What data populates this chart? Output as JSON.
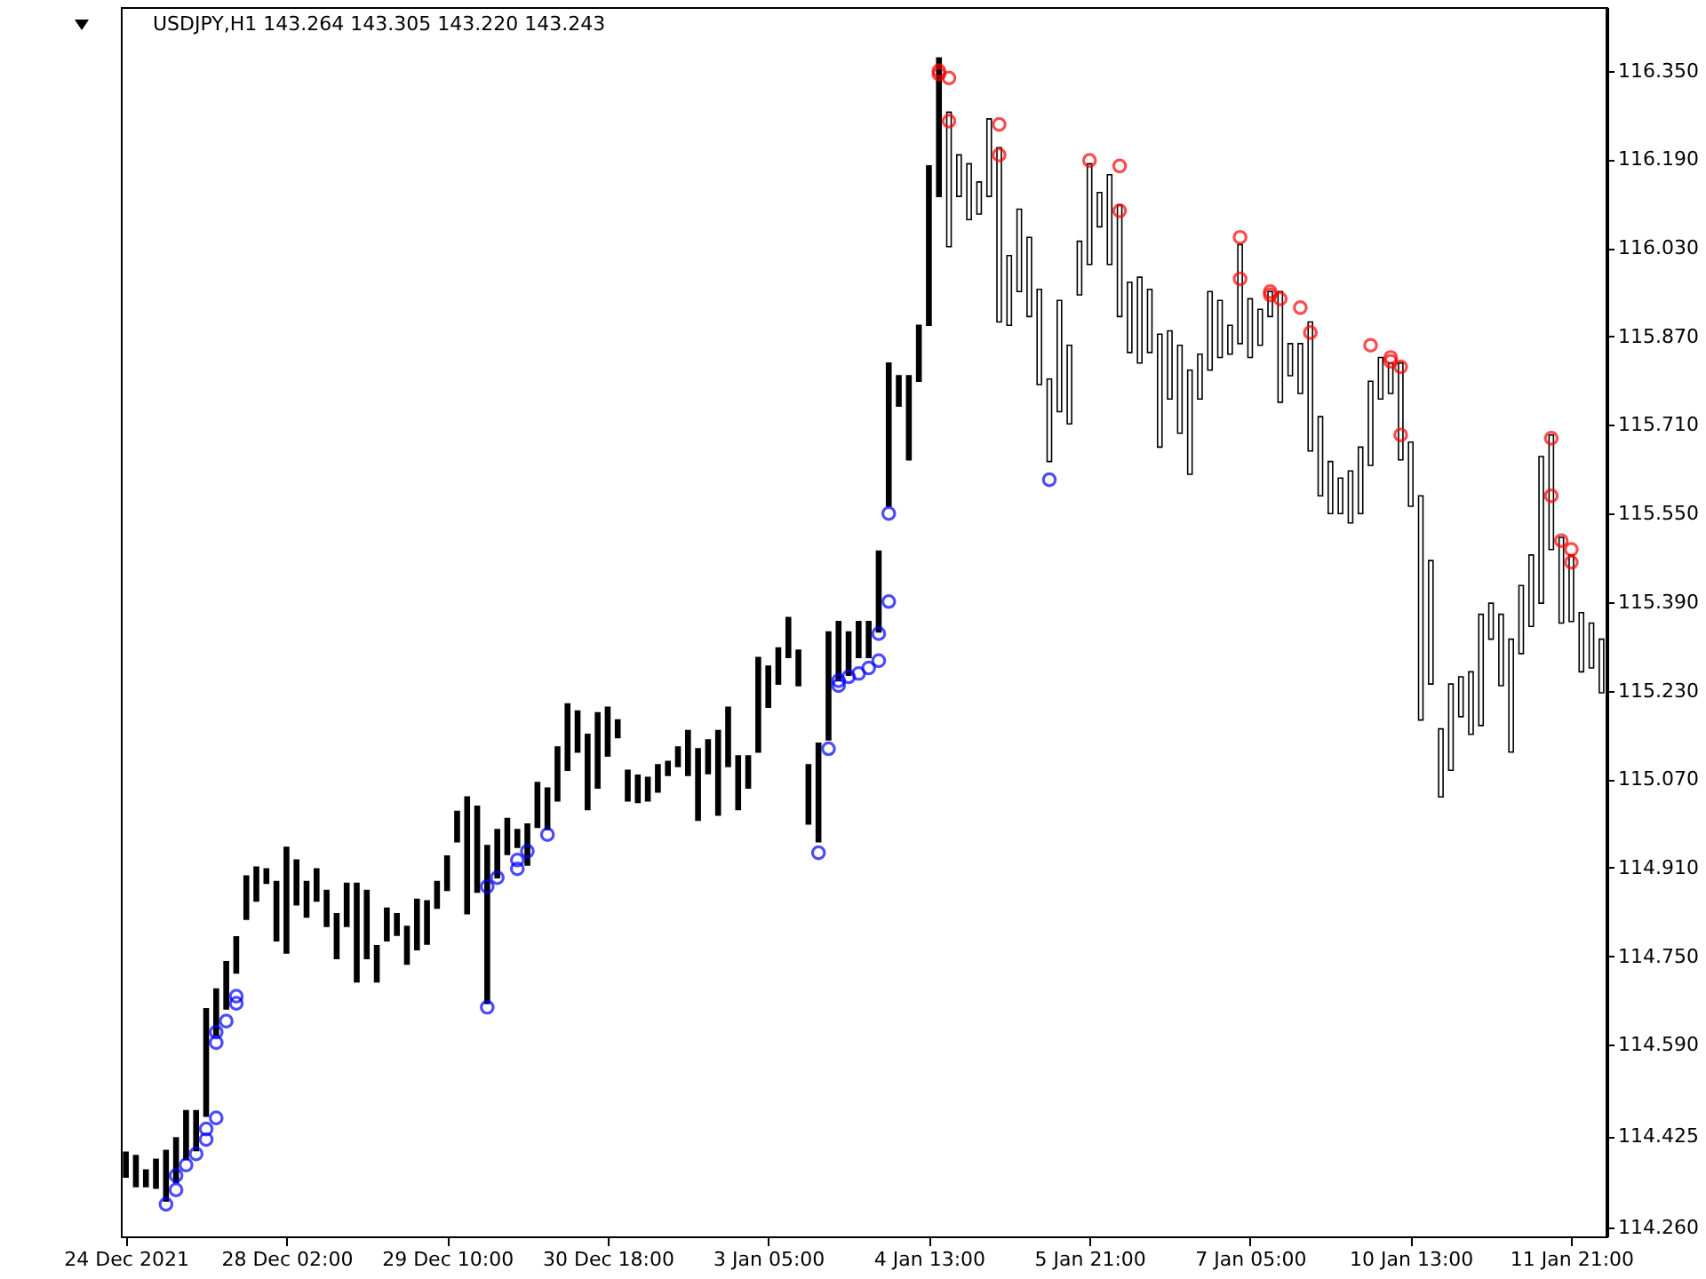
{
  "chart_data": {
    "type": "candlestick",
    "title": "USDJPY,H1  143.264 143.305 143.220 143.243",
    "categories": [
      "24 Dec 2021",
      null,
      null,
      null,
      null,
      null,
      null,
      null,
      null,
      null,
      null,
      null,
      null,
      null,
      null,
      null,
      "28 Dec 02:00",
      null,
      null,
      null,
      null,
      null,
      null,
      null,
      null,
      null,
      null,
      null,
      null,
      null,
      null,
      null,
      "29 Dec 10:00",
      null,
      null,
      null,
      null,
      null,
      null,
      null,
      null,
      null,
      null,
      null,
      null,
      null,
      null,
      null,
      "30 Dec 18:00",
      null,
      null,
      null,
      null,
      null,
      null,
      null,
      null,
      null,
      null,
      null,
      null,
      null,
      null,
      null,
      "3 Jan 05:00",
      null,
      null,
      null,
      null,
      null,
      null,
      null,
      null,
      null,
      null,
      null,
      null,
      null,
      null,
      null,
      "4 Jan 13:00",
      null,
      null,
      null,
      null,
      null,
      null,
      null,
      null,
      null,
      null,
      null,
      null,
      null,
      null,
      null,
      "5 Jan 21:00",
      null,
      null,
      null,
      null,
      null,
      null,
      null,
      null,
      null,
      null,
      null,
      null,
      null,
      null,
      null,
      "7 Jan 05:00",
      null,
      null,
      null,
      null,
      null,
      null,
      null,
      null,
      null,
      null,
      null,
      null,
      null,
      null,
      null,
      "10 Jan 13:00",
      null,
      null,
      null,
      null,
      null,
      null,
      null,
      null,
      null,
      null,
      null,
      null,
      null,
      null,
      null,
      "11 Jan 21:00",
      null,
      null,
      null
    ],
    "ohlc": [
      [
        114.351,
        114.396,
        114.351,
        114.396
      ],
      [
        114.334,
        114.39,
        114.334,
        114.39
      ],
      [
        114.334,
        114.364,
        114.334,
        114.364
      ],
      [
        114.331,
        114.383,
        114.331,
        114.383
      ],
      [
        114.308,
        114.399,
        114.308,
        114.399
      ],
      [
        114.341,
        114.422,
        114.341,
        114.422
      ],
      [
        114.383,
        114.471,
        114.383,
        114.471
      ],
      [
        114.399,
        114.471,
        114.399,
        114.471
      ],
      [
        114.461,
        114.655,
        114.461,
        114.655
      ],
      [
        114.607,
        114.691,
        114.607,
        114.691
      ],
      [
        114.655,
        114.74,
        114.655,
        114.74
      ],
      [
        114.72,
        114.785,
        114.72,
        114.785
      ],
      [
        114.817,
        114.895,
        114.817,
        114.895
      ],
      [
        114.85,
        114.911,
        114.85,
        114.911
      ],
      [
        114.882,
        114.908,
        114.882,
        114.908
      ],
      [
        114.778,
        114.885,
        114.778,
        114.885
      ],
      [
        114.756,
        114.947,
        114.756,
        114.947
      ],
      [
        114.843,
        114.924,
        114.843,
        114.924
      ],
      [
        114.821,
        114.885,
        114.821,
        114.885
      ],
      [
        114.85,
        114.908,
        114.85,
        114.908
      ],
      [
        114.804,
        114.869,
        114.804,
        114.869
      ],
      [
        114.746,
        114.827,
        114.746,
        114.827
      ],
      [
        114.804,
        114.882,
        114.804,
        114.882
      ],
      [
        114.704,
        114.882,
        114.704,
        114.882
      ],
      [
        114.746,
        114.869,
        114.746,
        114.869
      ],
      [
        114.704,
        114.769,
        114.704,
        114.769
      ],
      [
        114.778,
        114.837,
        114.778,
        114.837
      ],
      [
        114.788,
        114.827,
        114.788,
        114.827
      ],
      [
        114.736,
        114.804,
        114.736,
        114.804
      ],
      [
        114.762,
        114.853,
        114.762,
        114.853
      ],
      [
        114.772,
        114.85,
        114.772,
        114.85
      ],
      [
        114.837,
        114.885,
        114.837,
        114.885
      ],
      [
        114.869,
        114.931,
        114.869,
        114.931
      ],
      [
        114.957,
        115.012,
        114.957,
        115.012
      ],
      [
        114.827,
        115.038,
        114.827,
        115.038
      ],
      [
        114.866,
        115.021,
        114.866,
        115.021
      ],
      [
        114.665,
        114.95,
        114.665,
        114.95
      ],
      [
        114.892,
        114.979,
        114.892,
        114.979
      ],
      [
        114.934,
        114.999,
        114.934,
        114.999
      ],
      [
        114.947,
        114.979,
        114.947,
        114.979
      ],
      [
        114.915,
        114.989,
        114.915,
        114.989
      ],
      [
        114.983,
        115.064,
        114.983,
        115.064
      ],
      [
        114.979,
        115.054,
        114.979,
        115.054
      ],
      [
        115.031,
        115.128,
        115.031,
        115.128
      ],
      [
        115.086,
        115.206,
        115.086,
        115.206
      ],
      [
        115.119,
        115.193,
        115.119,
        115.193
      ],
      [
        115.015,
        115.151,
        115.015,
        115.151
      ],
      [
        115.054,
        115.19,
        115.054,
        115.19
      ],
      [
        115.112,
        115.2,
        115.112,
        115.2
      ],
      [
        115.145,
        115.177,
        115.145,
        115.177
      ],
      [
        115.031,
        115.086,
        115.031,
        115.086
      ],
      [
        115.028,
        115.077,
        115.028,
        115.077
      ],
      [
        115.031,
        115.073,
        115.031,
        115.073
      ],
      [
        115.047,
        115.096,
        115.047,
        115.096
      ],
      [
        115.077,
        115.102,
        115.077,
        115.102
      ],
      [
        115.093,
        115.128,
        115.093,
        115.128
      ],
      [
        115.077,
        115.158,
        115.077,
        115.158
      ],
      [
        114.996,
        115.125,
        114.996,
        115.125
      ],
      [
        115.08,
        115.141,
        115.08,
        115.141
      ],
      [
        115.005,
        115.158,
        115.005,
        115.158
      ],
      [
        115.093,
        115.2,
        115.093,
        115.2
      ],
      [
        115.015,
        115.112,
        115.015,
        115.112
      ],
      [
        115.054,
        115.112,
        115.054,
        115.112
      ],
      [
        115.119,
        115.29,
        115.119,
        115.29
      ],
      [
        115.2,
        115.274,
        115.2,
        115.274
      ],
      [
        115.242,
        115.307,
        115.242,
        115.307
      ],
      [
        115.29,
        115.362,
        115.29,
        115.362
      ],
      [
        115.239,
        115.303,
        115.239,
        115.303
      ],
      [
        114.989,
        115.096,
        114.989,
        115.096
      ],
      [
        114.957,
        115.135,
        114.957,
        115.135
      ],
      [
        115.141,
        115.336,
        115.141,
        115.336
      ],
      [
        115.248,
        115.355,
        115.248,
        115.355
      ],
      [
        115.258,
        115.336,
        115.258,
        115.336
      ],
      [
        115.29,
        115.355,
        115.29,
        115.355
      ],
      [
        115.29,
        115.355,
        115.29,
        115.355
      ],
      [
        115.336,
        115.482,
        115.336,
        115.482
      ],
      [
        115.563,
        115.822,
        115.563,
        115.822
      ],
      [
        115.744,
        115.799,
        115.744,
        115.799
      ],
      [
        115.647,
        115.799,
        115.647,
        115.799
      ],
      [
        115.789,
        115.89,
        115.789,
        115.89
      ],
      [
        115.89,
        116.178,
        115.89,
        116.178
      ],
      [
        116.123,
        116.373,
        116.123,
        116.373
      ],
      [
        116.275,
        116.275,
        116.032,
        116.032
      ],
      [
        116.198,
        116.198,
        116.123,
        116.123
      ],
      [
        116.182,
        116.182,
        116.081,
        116.081
      ],
      [
        116.149,
        116.149,
        116.091,
        116.091
      ],
      [
        116.263,
        116.263,
        116.123,
        116.123
      ],
      [
        116.211,
        116.211,
        115.896,
        115.896
      ],
      [
        116.016,
        116.016,
        115.89,
        115.89
      ],
      [
        116.1,
        116.1,
        115.951,
        115.951
      ],
      [
        116.049,
        116.049,
        115.906,
        115.906
      ],
      [
        115.955,
        115.955,
        115.783,
        115.783
      ],
      [
        115.793,
        115.793,
        115.644,
        115.644
      ],
      [
        115.935,
        115.935,
        115.734,
        115.734
      ],
      [
        115.854,
        115.854,
        115.712,
        115.712
      ],
      [
        116.042,
        116.042,
        115.945,
        115.945
      ],
      [
        116.182,
        116.182,
        116.0,
        116.0
      ],
      [
        116.13,
        116.13,
        116.068,
        116.068
      ],
      [
        116.162,
        116.162,
        116.0,
        116.0
      ],
      [
        116.107,
        116.107,
        115.906,
        115.906
      ],
      [
        115.968,
        115.968,
        115.841,
        115.841
      ],
      [
        115.977,
        115.977,
        115.822,
        115.822
      ],
      [
        115.955,
        115.955,
        115.841,
        115.841
      ],
      [
        115.874,
        115.874,
        115.67,
        115.67
      ],
      [
        115.88,
        115.88,
        115.757,
        115.757
      ],
      [
        115.854,
        115.854,
        115.695,
        115.695
      ],
      [
        115.809,
        115.809,
        115.621,
        115.621
      ],
      [
        115.838,
        115.838,
        115.757,
        115.757
      ],
      [
        115.951,
        115.951,
        115.809,
        115.809
      ],
      [
        115.935,
        115.935,
        115.832,
        115.832
      ],
      [
        115.89,
        115.89,
        115.838,
        115.838
      ],
      [
        116.036,
        116.036,
        115.857,
        115.857
      ],
      [
        115.938,
        115.938,
        115.832,
        115.832
      ],
      [
        115.919,
        115.919,
        115.854,
        115.854
      ],
      [
        115.951,
        115.951,
        115.906,
        115.906
      ],
      [
        115.951,
        115.951,
        115.751,
        115.751
      ],
      [
        115.857,
        115.857,
        115.799,
        115.799
      ],
      [
        115.857,
        115.857,
        115.767,
        115.767
      ],
      [
        115.896,
        115.896,
        115.663,
        115.663
      ],
      [
        115.725,
        115.725,
        115.582,
        115.582
      ],
      [
        115.644,
        115.644,
        115.55,
        115.55
      ],
      [
        115.614,
        115.614,
        115.55,
        115.55
      ],
      [
        115.627,
        115.627,
        115.533,
        115.533
      ],
      [
        115.67,
        115.67,
        115.55,
        115.55
      ],
      [
        115.789,
        115.789,
        115.637,
        115.637
      ],
      [
        115.832,
        115.832,
        115.757,
        115.757
      ],
      [
        115.822,
        115.822,
        115.767,
        115.767
      ],
      [
        115.822,
        115.822,
        115.647,
        115.647
      ],
      [
        115.679,
        115.679,
        115.563,
        115.563
      ],
      [
        115.582,
        115.582,
        115.177,
        115.177
      ],
      [
        115.465,
        115.465,
        115.242,
        115.242
      ],
      [
        115.161,
        115.161,
        115.038,
        115.038
      ],
      [
        115.242,
        115.242,
        115.086,
        115.086
      ],
      [
        115.255,
        115.255,
        115.183,
        115.183
      ],
      [
        115.264,
        115.264,
        115.151,
        115.151
      ],
      [
        115.368,
        115.368,
        115.167,
        115.167
      ],
      [
        115.388,
        115.388,
        115.323,
        115.323
      ],
      [
        115.368,
        115.368,
        115.239,
        115.239
      ],
      [
        115.323,
        115.323,
        115.119,
        115.119
      ],
      [
        115.42,
        115.42,
        115.297,
        115.297
      ],
      [
        115.475,
        115.475,
        115.346,
        115.346
      ],
      [
        115.653,
        115.653,
        115.388,
        115.388
      ],
      [
        115.692,
        115.692,
        115.485,
        115.485
      ],
      [
        115.507,
        115.507,
        115.352,
        115.352
      ],
      [
        115.475,
        115.475,
        115.355,
        115.355
      ],
      [
        115.371,
        115.371,
        115.264,
        115.264
      ],
      [
        115.352,
        115.352,
        115.271,
        115.271
      ],
      [
        115.323,
        115.323,
        115.226,
        115.226
      ]
    ],
    "series": [
      {
        "type": "scatter",
        "color": "#0000ff",
        "values": [
          null,
          null,
          null,
          null,
          114.302,
          114.354,
          null,
          null,
          114.438,
          114.613,
          null,
          114.678,
          null,
          null,
          null,
          null,
          null,
          null,
          null,
          null,
          null,
          null,
          null,
          null,
          null,
          null,
          null,
          null,
          null,
          null,
          null,
          null,
          null,
          null,
          null,
          null,
          114.876,
          114.892,
          null,
          114.924,
          114.94,
          null,
          null,
          null,
          null,
          null,
          null,
          null,
          null,
          null,
          null,
          null,
          null,
          null,
          null,
          null,
          null,
          null,
          null,
          null,
          null,
          null,
          null,
          null,
          null,
          null,
          null,
          null,
          null,
          114.937,
          null,
          115.248,
          115.255,
          null,
          null,
          115.333,
          115.55,
          null,
          null,
          null,
          null,
          null,
          null,
          null,
          null,
          null,
          null,
          null,
          null,
          null,
          null,
          null,
          115.611,
          null,
          null,
          null,
          null,
          null,
          null,
          null,
          null,
          null,
          null,
          null,
          null,
          null,
          null,
          null,
          null,
          null,
          null,
          null,
          null,
          null,
          null,
          null,
          null,
          null,
          null,
          null,
          null,
          null,
          null,
          null,
          null,
          null,
          null,
          null,
          null,
          null,
          null,
          null,
          null,
          null,
          null,
          null,
          null,
          null,
          null,
          null,
          null,
          null,
          null,
          null,
          null,
          null,
          null,
          null
        ]
      },
      {
        "type": "scatter",
        "color": "#0000ff",
        "values": [
          null,
          null,
          null,
          null,
          null,
          114.328,
          114.373,
          114.393,
          114.419,
          114.458,
          114.633,
          114.665,
          null,
          null,
          null,
          null,
          null,
          null,
          null,
          null,
          null,
          null,
          null,
          null,
          null,
          null,
          null,
          null,
          null,
          null,
          null,
          null,
          null,
          null,
          null,
          null,
          114.658,
          null,
          null,
          114.908,
          null,
          null,
          114.97,
          null,
          null,
          null,
          null,
          null,
          null,
          null,
          null,
          null,
          null,
          null,
          null,
          null,
          null,
          null,
          null,
          null,
          null,
          null,
          null,
          null,
          null,
          null,
          null,
          null,
          null,
          null,
          115.125,
          115.239,
          null,
          115.261,
          115.271,
          115.284,
          115.391,
          null,
          null,
          null,
          null,
          null,
          null,
          null,
          null,
          null,
          null,
          null,
          null,
          null,
          null,
          null,
          null,
          null,
          null,
          null,
          null,
          null,
          null,
          null,
          null,
          null,
          null,
          null,
          null,
          null,
          null,
          null,
          null,
          null,
          null,
          null,
          null,
          null,
          null,
          null,
          null,
          null,
          null,
          null,
          null,
          null,
          null,
          null,
          null,
          null,
          null,
          null,
          null,
          null,
          null,
          null,
          null,
          null,
          null,
          null,
          null,
          null,
          null,
          null,
          null,
          null,
          null,
          null,
          null,
          null,
          null,
          null
        ]
      },
      {
        "type": "scatter",
        "color": "#0000ff",
        "values": [
          null,
          null,
          null,
          null,
          null,
          null,
          null,
          null,
          null,
          114.594,
          null,
          null,
          null,
          null,
          null,
          null,
          null,
          null,
          null,
          null,
          null,
          null,
          null,
          null,
          null,
          null,
          null,
          null,
          null,
          null,
          null,
          null,
          null,
          null,
          null,
          null,
          null,
          null,
          null,
          null,
          null,
          null,
          null,
          null,
          null,
          null,
          null,
          null,
          null,
          null,
          null,
          null,
          null,
          null,
          null,
          null,
          null,
          null,
          null,
          null,
          null,
          null,
          null,
          null,
          null,
          null,
          null,
          null,
          null,
          null,
          null,
          null,
          null,
          null,
          null,
          null,
          null,
          null,
          null,
          null,
          null,
          null,
          null,
          null,
          null,
          null,
          null,
          null,
          null,
          null,
          null,
          null,
          null,
          null,
          null,
          null,
          null,
          null,
          null,
          null,
          null,
          null,
          null,
          null,
          null,
          null,
          null,
          null,
          null,
          null,
          null,
          null,
          null,
          null,
          null,
          null,
          null,
          null,
          null,
          null,
          null,
          null,
          null,
          null,
          null,
          null,
          null,
          null,
          null,
          null,
          null,
          null,
          null,
          null,
          null,
          null,
          null,
          null,
          null,
          null,
          null,
          null,
          null,
          null,
          null,
          null,
          null,
          null
        ]
      },
      {
        "type": "scatter",
        "color": "#ff0000",
        "values": [
          null,
          null,
          null,
          null,
          null,
          null,
          null,
          null,
          null,
          null,
          null,
          null,
          null,
          null,
          null,
          null,
          null,
          null,
          null,
          null,
          null,
          null,
          null,
          null,
          null,
          null,
          null,
          null,
          null,
          null,
          null,
          null,
          null,
          null,
          null,
          null,
          null,
          null,
          null,
          null,
          null,
          null,
          null,
          null,
          null,
          null,
          null,
          null,
          null,
          null,
          null,
          null,
          null,
          null,
          null,
          null,
          null,
          null,
          null,
          null,
          null,
          null,
          null,
          null,
          null,
          null,
          null,
          null,
          null,
          null,
          null,
          null,
          null,
          null,
          null,
          null,
          null,
          null,
          null,
          null,
          null,
          116.344,
          116.337,
          null,
          null,
          null,
          null,
          116.198,
          null,
          null,
          null,
          null,
          null,
          null,
          null,
          null,
          116.188,
          null,
          null,
          116.097,
          null,
          null,
          null,
          null,
          null,
          null,
          null,
          null,
          null,
          null,
          null,
          115.974,
          null,
          null,
          115.945,
          115.938,
          null,
          115.922,
          null,
          null,
          null,
          null,
          null,
          null,
          115.854,
          null,
          115.825,
          115.815,
          null,
          null,
          null,
          null,
          null,
          null,
          null,
          null,
          null,
          null,
          null,
          null,
          null,
          null,
          115.582,
          115.501,
          115.462,
          null,
          null,
          null
        ]
      },
      {
        "type": "scatter",
        "color": "#ff0000",
        "values": [
          null,
          null,
          null,
          null,
          null,
          null,
          null,
          null,
          null,
          null,
          null,
          null,
          null,
          null,
          null,
          null,
          null,
          null,
          null,
          null,
          null,
          null,
          null,
          null,
          null,
          null,
          null,
          null,
          null,
          null,
          null,
          null,
          null,
          null,
          null,
          null,
          null,
          null,
          null,
          null,
          null,
          null,
          null,
          null,
          null,
          null,
          null,
          null,
          null,
          null,
          null,
          null,
          null,
          null,
          null,
          null,
          null,
          null,
          null,
          null,
          null,
          null,
          null,
          null,
          null,
          null,
          null,
          null,
          null,
          null,
          null,
          null,
          null,
          null,
          null,
          null,
          null,
          null,
          null,
          null,
          null,
          116.35,
          null,
          null,
          null,
          null,
          null,
          116.253,
          null,
          null,
          null,
          null,
          null,
          null,
          null,
          null,
          null,
          null,
          null,
          116.178,
          null,
          null,
          null,
          null,
          null,
          null,
          null,
          null,
          null,
          null,
          null,
          116.049,
          null,
          null,
          115.951,
          null,
          null,
          null,
          115.877,
          null,
          null,
          null,
          null,
          null,
          null,
          null,
          115.832,
          null,
          null,
          null,
          null,
          null,
          null,
          null,
          null,
          null,
          null,
          null,
          null,
          null,
          null,
          null,
          115.686,
          null,
          115.485,
          null,
          null,
          null
        ]
      },
      {
        "type": "scatter",
        "color": "#ff0000",
        "values": [
          null,
          null,
          null,
          null,
          null,
          null,
          null,
          null,
          null,
          null,
          null,
          null,
          null,
          null,
          null,
          null,
          null,
          null,
          null,
          null,
          null,
          null,
          null,
          null,
          null,
          null,
          null,
          null,
          null,
          null,
          null,
          null,
          null,
          null,
          null,
          null,
          null,
          null,
          null,
          null,
          null,
          null,
          null,
          null,
          null,
          null,
          null,
          null,
          null,
          null,
          null,
          null,
          null,
          null,
          null,
          null,
          null,
          null,
          null,
          null,
          null,
          null,
          null,
          null,
          null,
          null,
          null,
          null,
          null,
          null,
          null,
          null,
          null,
          null,
          null,
          null,
          null,
          null,
          null,
          null,
          null,
          null,
          116.259,
          null,
          null,
          null,
          null,
          null,
          null,
          null,
          null,
          null,
          null,
          null,
          null,
          null,
          null,
          null,
          null,
          null,
          null,
          null,
          null,
          null,
          null,
          null,
          null,
          null,
          null,
          null,
          null,
          null,
          null,
          null,
          null,
          null,
          null,
          null,
          null,
          null,
          null,
          null,
          null,
          null,
          null,
          null,
          null,
          115.692,
          null,
          null,
          null,
          null,
          null,
          null,
          null,
          null,
          null,
          null,
          null,
          null,
          null,
          null,
          null,
          null,
          null,
          null,
          null,
          null
        ]
      }
    ],
    "marker": "circle",
    "ylim": [
      114.244,
      116.465
    ],
    "yticks": [
      {
        "value": 114.26,
        "label": "114.260"
      },
      114.425,
      {
        "value": 114.59,
        "label": "114.590"
      },
      {
        "value": 114.75,
        "label": "114.750"
      },
      {
        "value": 114.91,
        "label": "114.910"
      },
      {
        "value": 115.07,
        "label": "115.070"
      },
      {
        "value": 115.23,
        "label": "115.230"
      },
      {
        "value": 115.39,
        "label": "115.390"
      },
      {
        "value": 115.55,
        "label": "115.550"
      },
      {
        "value": 115.71,
        "label": "115.710"
      },
      {
        "value": 115.87,
        "label": "115.870"
      },
      {
        "value": 116.03,
        "label": "116.030"
      },
      {
        "value": 116.19,
        "label": "116.190"
      },
      {
        "value": 116.35,
        "label": "116.350"
      }
    ],
    "grid": false
  }
}
